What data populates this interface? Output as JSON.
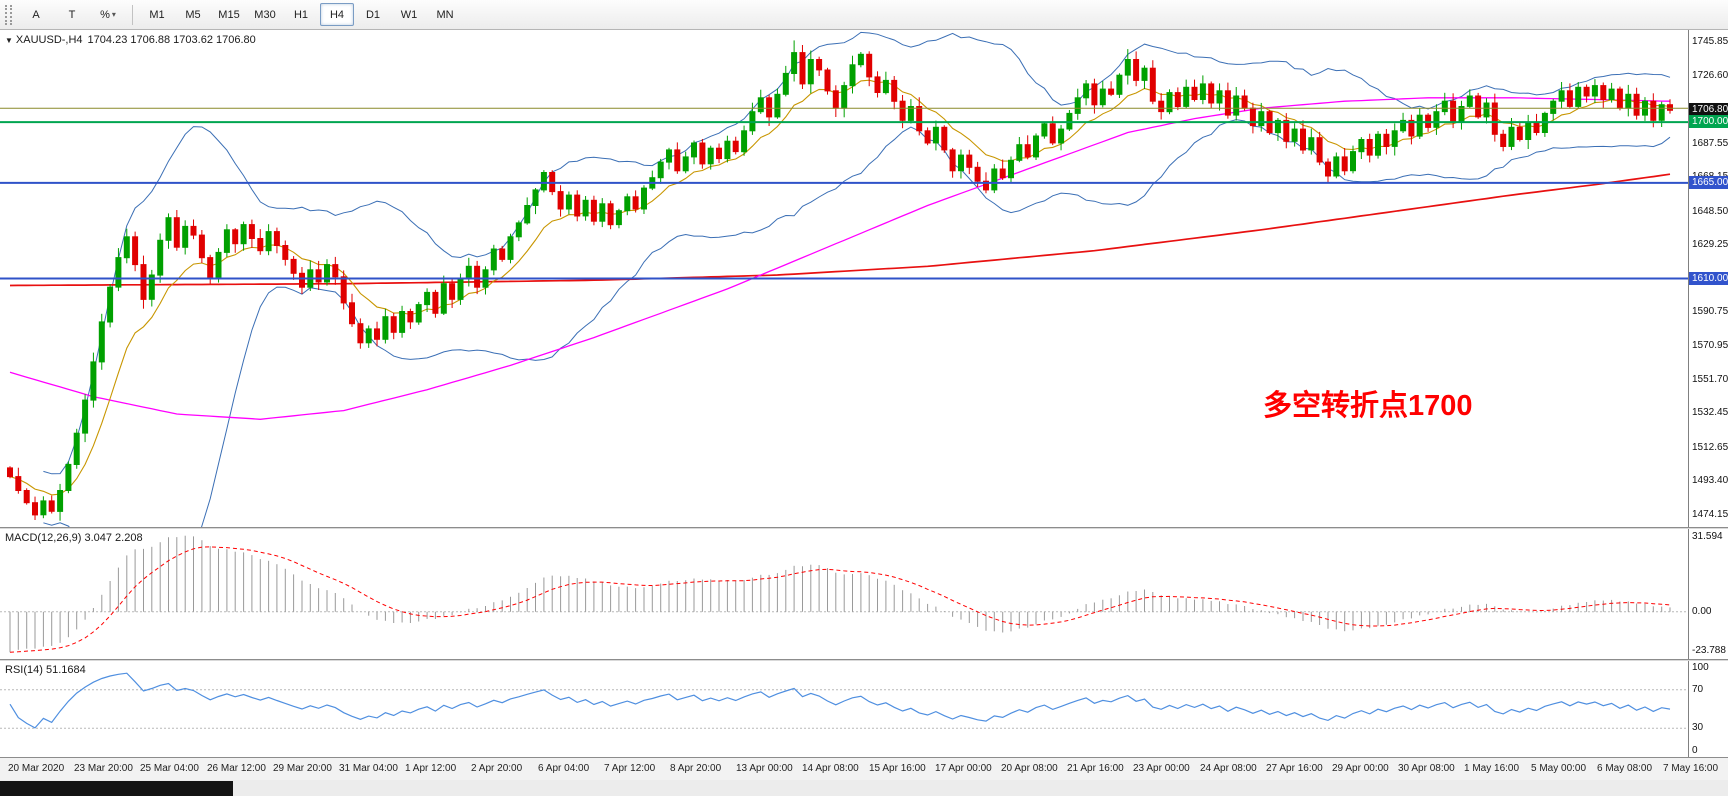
{
  "toolbar": {
    "timeframes": [
      "M1",
      "M5",
      "M15",
      "M30",
      "H1",
      "H4",
      "D1",
      "W1",
      "MN"
    ],
    "active_timeframe": "H4",
    "tool_buttons": [
      {
        "label": "A",
        "name": "annotate-tool"
      },
      {
        "label": "T",
        "name": "text-tool"
      },
      {
        "label": "%",
        "name": "percent-tool"
      }
    ]
  },
  "chart": {
    "symbol_period": "XAUUSD-,H4",
    "ohlc_text": "1704.23 1706.88 1703.62 1706.80",
    "annotation": "多空转折点1700",
    "annotation_color": "#ff0000",
    "price_labels": [
      "1745.85",
      "1726.60",
      "1707.20",
      "1687.55",
      "1668.15",
      "1648.50",
      "1629.25",
      "1609.85",
      "1590.75",
      "1570.95",
      "1551.70",
      "1532.45",
      "1512.65",
      "1493.40",
      "1474.15"
    ],
    "badges": [
      {
        "text": "1706.80",
        "price": 1706.8,
        "bg": "#111111",
        "fg": "#ffffff"
      },
      {
        "text": "1700.00",
        "price": 1700.0,
        "bg": "#00a550",
        "fg": "#ffffff"
      },
      {
        "text": "1665.00",
        "price": 1665.0,
        "bg": "#3153cc",
        "fg": "#ffffff"
      },
      {
        "text": "1610.00",
        "price": 1610.0,
        "bg": "#3153cc",
        "fg": "#ffffff"
      }
    ]
  },
  "macd": {
    "label": "MACD(12,26,9) 3.047 2.208",
    "scale": [
      "31.594",
      "0.00",
      "-23.788"
    ]
  },
  "rsi": {
    "label": "RSI(14) 51.1684",
    "scale": [
      "100",
      "70",
      "30",
      "0"
    ],
    "levels": [
      70,
      30
    ]
  },
  "time_labels": [
    "20 Mar 2020",
    "23 Mar 20:00",
    "25 Mar 04:00",
    "26 Mar 12:00",
    "29 Mar 20:00",
    "31 Mar 04:00",
    "1 Apr 12:00",
    "2 Apr 20:00",
    "6 Apr 04:00",
    "7 Apr 12:00",
    "8 Apr 20:00",
    "13 Apr 00:00",
    "14 Apr 08:00",
    "15 Apr 16:00",
    "17 Apr 00:00",
    "20 Apr 08:00",
    "21 Apr 16:00",
    "23 Apr 00:00",
    "24 Apr 08:00",
    "27 Apr 16:00",
    "29 Apr 00:00",
    "30 Apr 08:00",
    "1 May 16:00",
    "5 May 00:00",
    "6 May 08:00",
    "7 May 16:00"
  ],
  "chart_data": {
    "type": "candlestick",
    "symbol": "XAUUSD",
    "timeframe": "H4",
    "last_price": 1706.8,
    "y_range": [
      1467,
      1753
    ],
    "first_open": 1501,
    "closes": [
      1496,
      1488,
      1481,
      1474,
      1482,
      1476,
      1488,
      1503,
      1521,
      1540,
      1562,
      1585,
      1605,
      1622,
      1634,
      1618,
      1598,
      1612,
      1632,
      1645,
      1628,
      1640,
      1635,
      1622,
      1610,
      1625,
      1638,
      1630,
      1641,
      1633,
      1626,
      1637,
      1629,
      1621,
      1613,
      1605,
      1615,
      1608,
      1618,
      1611,
      1596,
      1584,
      1573,
      1581,
      1575,
      1588,
      1579,
      1591,
      1585,
      1595,
      1602,
      1590,
      1607,
      1598,
      1610,
      1617,
      1605,
      1615,
      1627,
      1621,
      1634,
      1642,
      1652,
      1661,
      1671,
      1660,
      1650,
      1658,
      1646,
      1655,
      1643,
      1653,
      1641,
      1649,
      1657,
      1650,
      1662,
      1668,
      1677,
      1684,
      1672,
      1680,
      1688,
      1676,
      1685,
      1679,
      1689,
      1683,
      1695,
      1706,
      1714,
      1703,
      1716,
      1728,
      1740,
      1722,
      1736,
      1730,
      1718,
      1708,
      1721,
      1733,
      1739,
      1726,
      1717,
      1724,
      1712,
      1701,
      1709,
      1695,
      1688,
      1697,
      1684,
      1672,
      1681,
      1674,
      1666,
      1661,
      1673,
      1668,
      1678,
      1687,
      1680,
      1692,
      1699,
      1688,
      1696,
      1705,
      1714,
      1722,
      1710,
      1719,
      1716,
      1727,
      1736,
      1724,
      1731,
      1712,
      1706,
      1717,
      1709,
      1720,
      1713,
      1722,
      1711,
      1718,
      1704,
      1715,
      1708,
      1698,
      1706,
      1694,
      1701,
      1689,
      1696,
      1684,
      1691,
      1677,
      1669,
      1680,
      1672,
      1683,
      1690,
      1681,
      1693,
      1686,
      1695,
      1701,
      1692,
      1704,
      1697,
      1706,
      1712,
      1700,
      1709,
      1715,
      1703,
      1711,
      1693,
      1686,
      1697,
      1690,
      1700,
      1694,
      1705,
      1712,
      1718,
      1709,
      1720,
      1715,
      1721,
      1713,
      1719,
      1708,
      1716,
      1704,
      1712,
      1701,
      1710,
      1706.8
    ],
    "high_overrides": [
      [
        94,
        1747
      ],
      [
        134,
        1742
      ]
    ],
    "low_overrides": [
      [
        3,
        1471
      ],
      [
        117,
        1659
      ]
    ],
    "hlines": [
      {
        "price": 1700,
        "color": "#00a550",
        "width": 2
      },
      {
        "price": 1665,
        "color": "#2f52c8",
        "width": 2
      },
      {
        "price": 1610,
        "color": "#2f52c8",
        "width": 2
      },
      {
        "price": 1708,
        "color": "#8a8a2a",
        "width": 1
      }
    ],
    "indicators": {
      "bollinger_period": 20,
      "bollinger_dev": 2,
      "ema_fast": 10,
      "macd": [
        12,
        26,
        9
      ],
      "rsi_period": 14
    },
    "ma_magenta_anchors": [
      [
        0,
        1556
      ],
      [
        10,
        1542
      ],
      [
        20,
        1532
      ],
      [
        30,
        1529
      ],
      [
        40,
        1534
      ],
      [
        50,
        1546
      ],
      [
        60,
        1560
      ],
      [
        70,
        1576
      ],
      [
        78,
        1590
      ],
      [
        86,
        1604
      ],
      [
        94,
        1620
      ],
      [
        102,
        1636
      ],
      [
        110,
        1652
      ],
      [
        118,
        1666
      ],
      [
        126,
        1680
      ],
      [
        134,
        1694
      ],
      [
        142,
        1702
      ],
      [
        150,
        1708
      ],
      [
        160,
        1712
      ],
      [
        170,
        1714
      ],
      [
        180,
        1714
      ],
      [
        190,
        1713
      ],
      [
        199,
        1712
      ]
    ],
    "ma_red_anchors": [
      [
        0,
        1606
      ],
      [
        40,
        1607
      ],
      [
        70,
        1609
      ],
      [
        92,
        1612
      ],
      [
        110,
        1617
      ],
      [
        130,
        1626
      ],
      [
        150,
        1638
      ],
      [
        165,
        1648
      ],
      [
        180,
        1658
      ],
      [
        190,
        1664
      ],
      [
        199,
        1670
      ]
    ],
    "colors": {
      "up": "#00a000",
      "down": "#e00000",
      "bollinger": "#3b6fb5",
      "ema_fast": "#c89600",
      "ma_magenta": "#ff00ff",
      "ma_red": "#e81010",
      "macd_hist": "#9a9a9a",
      "macd_signal": "#ff0000",
      "rsi": "#4f8fe0"
    }
  }
}
